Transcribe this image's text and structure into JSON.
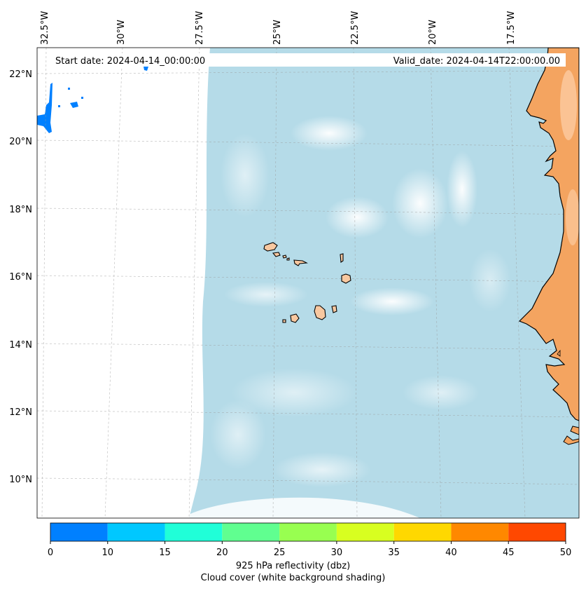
{
  "header": {
    "start_date": "Start date: 2024-04-14_00:00:00",
    "valid_date": "Valid_date: 2024-04-14T22:00:00.00"
  },
  "axes": {
    "lon_labels": [
      "32.5°W",
      "30°W",
      "27.5°W",
      "25°W",
      "22.5°W",
      "20°W",
      "17.5°W"
    ],
    "lat_labels": [
      "22°N",
      "20°N",
      "18°N",
      "16°N",
      "14°N",
      "12°N",
      "10°N"
    ]
  },
  "colorbar": {
    "ticks": [
      "0",
      "10",
      "15",
      "20",
      "25",
      "30",
      "35",
      "40",
      "45",
      "50"
    ],
    "colors": [
      "#0080ff",
      "#00c8ff",
      "#20ffd8",
      "#60ff90",
      "#98ff50",
      "#d8ff20",
      "#ffd800",
      "#ff8800",
      "#ff4800"
    ],
    "label_line1": "925 hPa reflectivity (dbz)",
    "label_line2": "Cloud cover (white background shading)"
  },
  "colors": {
    "ocean_cloud": "#add8e6",
    "land_coast": "#f4a460",
    "land_islands": "#f8c8a0"
  }
}
